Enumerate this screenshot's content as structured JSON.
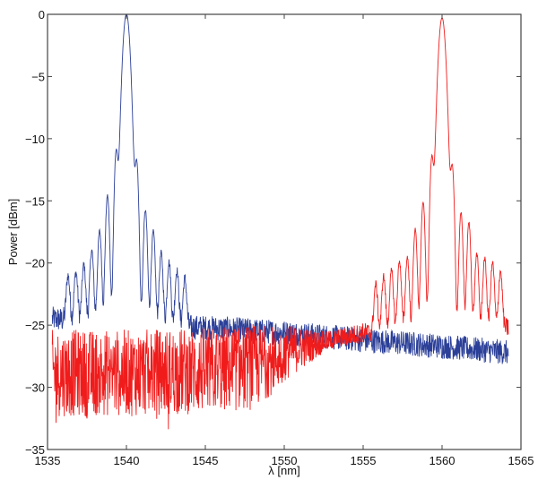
{
  "chart_data": {
    "type": "line",
    "title": "",
    "xlabel": "λ [nm]",
    "ylabel": "Power [dBm]",
    "xlim": [
      1535,
      1565
    ],
    "ylim": [
      -35,
      0
    ],
    "xticks": [
      1535,
      1540,
      1545,
      1550,
      1555,
      1560,
      1565
    ],
    "yticks": [
      0,
      -5,
      -10,
      -15,
      -20,
      -25,
      -30,
      -35
    ],
    "xtick_labels": [
      "1535",
      "1540",
      "1545",
      "1550",
      "1555",
      "1560",
      "1565"
    ],
    "ytick_labels": [
      "0",
      "-5",
      "-10",
      "-15",
      "-20",
      "-25",
      "-30",
      "-35"
    ],
    "grid": false,
    "box": true,
    "series": [
      {
        "color": "#2b3f98",
        "x_range": [
          1535.3,
          1564.2
        ],
        "main_peak": {
          "x": 1540.0,
          "y": 0.0
        },
        "sidelobes": [
          [
            1539.35,
            -11.3
          ],
          [
            1538.8,
            -15.0
          ],
          [
            1538.3,
            -18.3
          ],
          [
            1537.8,
            -20.3
          ],
          [
            1537.3,
            -22.0
          ],
          [
            1536.8,
            -23.0
          ],
          [
            1536.3,
            -23.5
          ],
          [
            1540.65,
            -12.2
          ],
          [
            1541.2,
            -16.3
          ],
          [
            1541.7,
            -18.3
          ],
          [
            1542.2,
            -20.5
          ],
          [
            1542.7,
            -21.5
          ],
          [
            1543.2,
            -22.5
          ],
          [
            1543.7,
            -23.5
          ]
        ],
        "noise_floor": [
          [
            1535.3,
            -24.5
          ],
          [
            1540,
            -25
          ],
          [
            1545,
            -25.2
          ],
          [
            1550,
            -25.6
          ],
          [
            1555,
            -26.2
          ],
          [
            1560,
            -26.7
          ],
          [
            1564.2,
            -27.2
          ]
        ],
        "noise_spread_db": 1.0
      },
      {
        "color": "#f01c1c",
        "x_range": [
          1535.3,
          1564.2
        ],
        "main_peak": {
          "x": 1560.0,
          "y": -0.3
        },
        "sidelobes": [
          [
            1559.35,
            -11.8
          ],
          [
            1558.8,
            -15.5
          ],
          [
            1558.3,
            -18.0
          ],
          [
            1557.8,
            -20.8
          ],
          [
            1557.3,
            -21.2
          ],
          [
            1556.8,
            -22.3
          ],
          [
            1556.3,
            -23.0
          ],
          [
            1555.8,
            -24.0
          ],
          [
            1560.65,
            -12.6
          ],
          [
            1561.2,
            -16.5
          ],
          [
            1561.7,
            -17.4
          ],
          [
            1562.2,
            -20.5
          ],
          [
            1562.7,
            -21.0
          ],
          [
            1563.2,
            -21.5
          ],
          [
            1563.7,
            -22.5
          ]
        ],
        "noise_floor": [
          [
            1535.3,
            -28.5
          ],
          [
            1540,
            -28.5
          ],
          [
            1545,
            -28.3
          ],
          [
            1548,
            -28
          ],
          [
            1550,
            -27.2
          ],
          [
            1553,
            -26.2
          ],
          [
            1555,
            -25.6
          ],
          [
            1557,
            -25.5
          ],
          [
            1560,
            -25.5
          ],
          [
            1564.2,
            -25.2
          ]
        ],
        "noise_spread_db": 3.5
      }
    ]
  }
}
